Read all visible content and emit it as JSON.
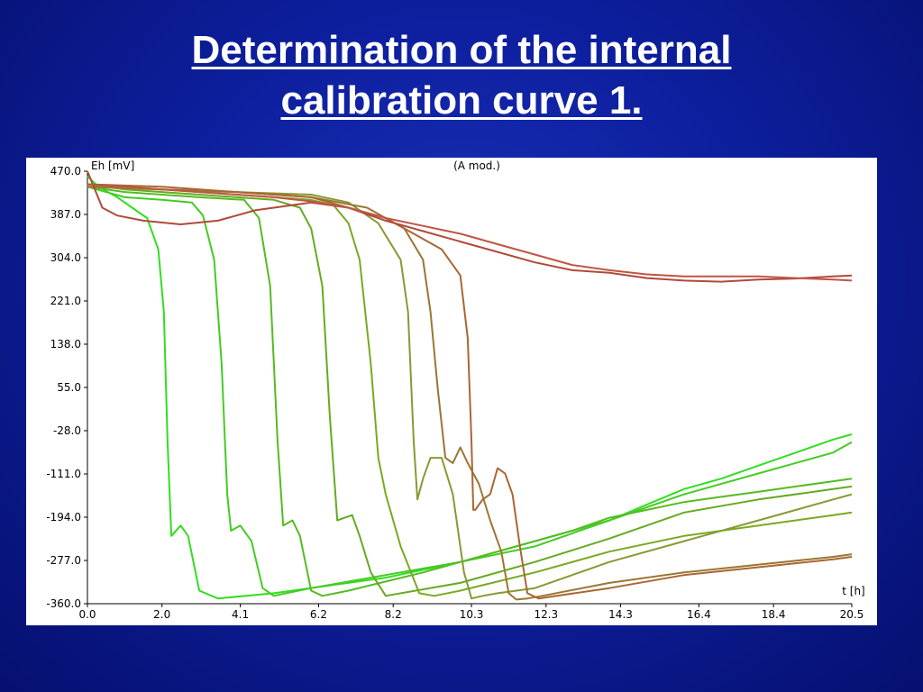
{
  "slide": {
    "title_line1": "Determination of the internal",
    "title_line2": "calibration curve 1."
  },
  "colors": {
    "background": "#0d1f9e",
    "title_text": "#ffffff",
    "green_light": "#33dd22",
    "green_mid": "#55bb22",
    "olive": "#889933",
    "olive_brown": "#997733",
    "brown": "#aa6633",
    "red_brown": "#b04a3a"
  },
  "chart_data": {
    "type": "line",
    "title": "(A mod.)",
    "xlabel": "t [h]",
    "ylabel": "Eh [mV]",
    "xlim": [
      0,
      20.5
    ],
    "ylim": [
      -360,
      470
    ],
    "x_ticks": [
      "0.0",
      "2.0",
      "4.1",
      "6.2",
      "8.2",
      "10.3",
      "12.3",
      "14.3",
      "16.4",
      "18.4",
      "20.5"
    ],
    "y_ticks": [
      "470.0",
      "387.0",
      "304.0",
      "221.0",
      "138.0",
      "55.0",
      "-28.0",
      "-111.0",
      "-194.0",
      "-277.0",
      "-360.0"
    ],
    "grid": false,
    "series": [
      {
        "color": "#33dd22",
        "x": [
          0,
          0.3,
          0.8,
          1.2,
          1.6,
          1.9,
          2.05,
          2.15,
          2.25,
          2.5,
          2.7,
          3.0,
          3.5,
          5,
          8,
          10,
          12,
          14,
          15,
          16,
          17,
          18,
          19,
          20,
          20.5
        ],
        "y": [
          460,
          440,
          420,
          400,
          380,
          320,
          200,
          -50,
          -230,
          -210,
          -230,
          -335,
          -350,
          -340,
          -310,
          -280,
          -240,
          -200,
          -170,
          -140,
          -120,
          -95,
          -70,
          -45,
          -35
        ]
      },
      {
        "color": "#44cc22",
        "x": [
          0,
          1,
          2,
          2.8,
          3.1,
          3.4,
          3.6,
          3.75,
          3.85,
          4.1,
          4.4,
          4.7,
          5,
          6,
          8,
          10,
          12,
          14,
          16,
          18,
          20,
          20.5
        ],
        "y": [
          440,
          420,
          415,
          410,
          385,
          300,
          100,
          -150,
          -220,
          -210,
          -240,
          -330,
          -345,
          -330,
          -305,
          -280,
          -250,
          -200,
          -150,
          -110,
          -70,
          -50
        ]
      },
      {
        "color": "#55bb22",
        "x": [
          0,
          1,
          2,
          3,
          4.2,
          4.6,
          4.9,
          5.1,
          5.25,
          5.5,
          5.7,
          6.0,
          6.3,
          7,
          9,
          11,
          13,
          14,
          15,
          16,
          17,
          18,
          19,
          20,
          20.5
        ],
        "y": [
          440,
          430,
          425,
          420,
          415,
          380,
          250,
          -50,
          -210,
          -200,
          -230,
          -335,
          -345,
          -335,
          -300,
          -260,
          -220,
          -195,
          -180,
          -165,
          -155,
          -145,
          -135,
          -125,
          -120
        ]
      },
      {
        "color": "#66aa22",
        "x": [
          0,
          1,
          2,
          3,
          4,
          5,
          5.7,
          6.0,
          6.3,
          6.5,
          6.7,
          6.9,
          7.1,
          7.3,
          7.6,
          8,
          10,
          12,
          14,
          16,
          18,
          20,
          20.5
        ],
        "y": [
          445,
          435,
          430,
          425,
          420,
          415,
          400,
          360,
          250,
          0,
          -200,
          -195,
          -190,
          -230,
          -300,
          -345,
          -320,
          -280,
          -235,
          -185,
          -160,
          -140,
          -135
        ]
      },
      {
        "color": "#77aa22",
        "x": [
          0,
          1,
          2,
          3,
          4,
          5,
          6,
          6.6,
          7.0,
          7.3,
          7.6,
          7.8,
          8.0,
          8.4,
          8.9,
          9.3,
          10,
          12,
          14,
          16,
          18,
          20,
          20.5
        ],
        "y": [
          445,
          440,
          435,
          430,
          425,
          420,
          415,
          405,
          370,
          300,
          100,
          -80,
          -150,
          -250,
          -340,
          -345,
          -335,
          -300,
          -260,
          -230,
          -210,
          -190,
          -185
        ]
      },
      {
        "color": "#889933",
        "x": [
          0,
          2,
          4,
          6,
          7,
          7.8,
          8.4,
          8.6,
          8.75,
          8.85,
          9.0,
          9.2,
          9.5,
          9.8,
          10.1,
          10.3,
          10.6,
          11,
          12,
          14,
          16,
          18,
          20,
          20.5
        ],
        "y": [
          440,
          435,
          430,
          425,
          410,
          370,
          300,
          200,
          -50,
          -160,
          -120,
          -80,
          -80,
          -150,
          -300,
          -350,
          -345,
          -340,
          -330,
          -280,
          -240,
          -200,
          -160,
          -150
        ]
      },
      {
        "color": "#997733",
        "x": [
          0,
          2,
          4,
          6,
          7.5,
          8.5,
          9.0,
          9.2,
          9.4,
          9.6,
          9.8,
          10.0,
          10.2,
          10.5,
          10.8,
          11.1,
          11.3,
          11.5,
          11.8,
          12.2,
          14,
          16,
          18,
          20,
          20.5
        ],
        "y": [
          440,
          435,
          430,
          420,
          400,
          360,
          300,
          200,
          50,
          -80,
          -90,
          -60,
          -90,
          -130,
          -200,
          -260,
          -340,
          -352,
          -350,
          -345,
          -320,
          -300,
          -285,
          -270,
          -265
        ]
      },
      {
        "color": "#aa6633",
        "x": [
          0,
          2,
          4,
          6,
          8,
          9.5,
          10.0,
          10.2,
          10.3,
          10.35,
          10.4,
          10.6,
          10.8,
          11.0,
          11.2,
          11.4,
          11.6,
          11.8,
          12.1,
          14,
          16,
          18,
          20,
          20.5
        ],
        "y": [
          445,
          440,
          430,
          420,
          380,
          320,
          270,
          150,
          -50,
          -180,
          -180,
          -160,
          -150,
          -100,
          -110,
          -150,
          -250,
          -340,
          -350,
          -330,
          -305,
          -290,
          -275,
          -270
        ]
      },
      {
        "color": "#b04a3a",
        "x": [
          0,
          0.4,
          0.8,
          1.5,
          2.5,
          3.5,
          4.5,
          6,
          7,
          8,
          9,
          10,
          11,
          12,
          13,
          14,
          15,
          16,
          17,
          18,
          19,
          20,
          20.5
        ],
        "y": [
          470,
          400,
          385,
          375,
          368,
          375,
          395,
          410,
          400,
          375,
          355,
          335,
          315,
          295,
          280,
          275,
          265,
          260,
          258,
          262,
          264,
          268,
          270
        ]
      },
      {
        "color": "#c05545",
        "x": [
          0,
          1,
          2,
          3,
          4,
          5,
          6,
          7,
          8,
          9,
          10,
          11,
          12,
          13,
          14,
          15,
          16,
          17,
          18,
          19,
          20,
          20.5
        ],
        "y": [
          445,
          440,
          435,
          430,
          425,
          420,
          412,
          400,
          380,
          365,
          350,
          330,
          310,
          290,
          280,
          272,
          268,
          268,
          268,
          265,
          262,
          260
        ]
      }
    ]
  }
}
